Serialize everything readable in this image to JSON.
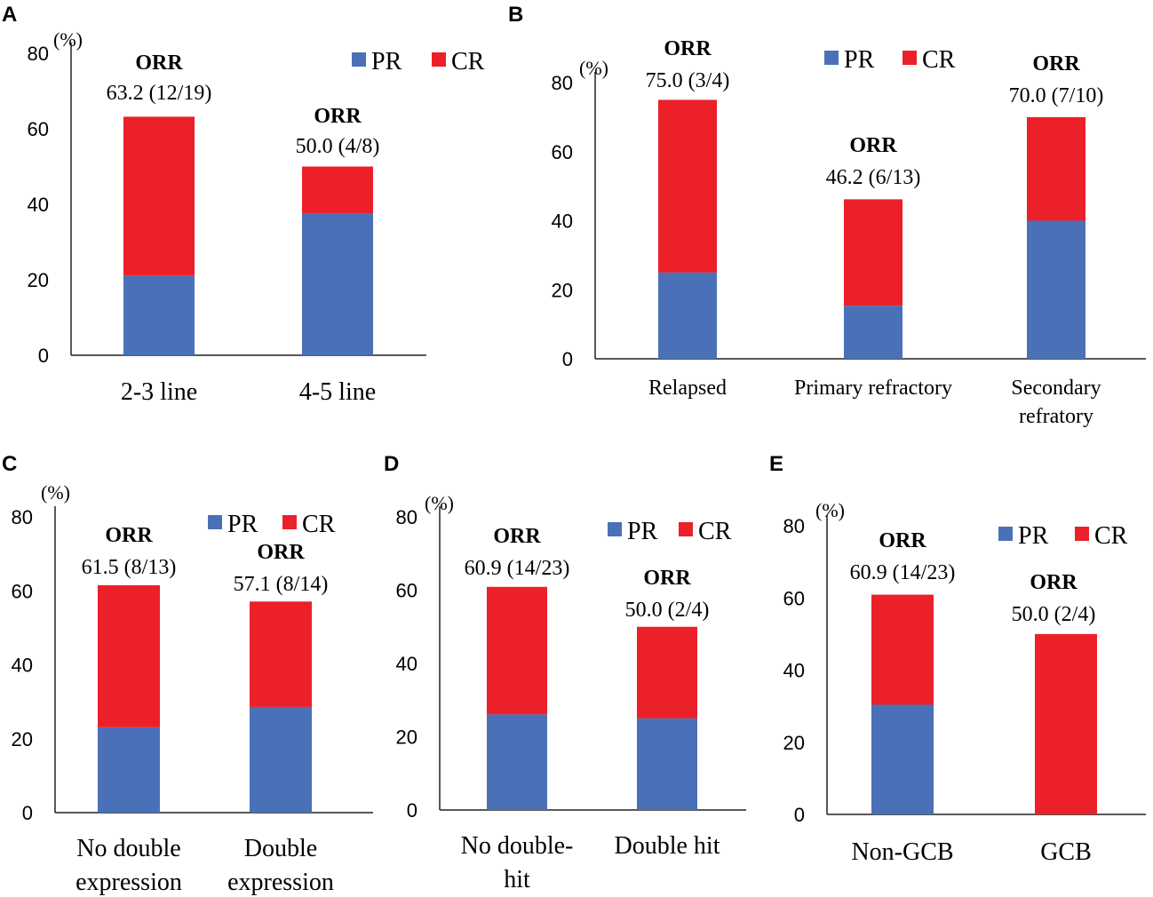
{
  "legend": {
    "pr": "PR",
    "cr": "CR"
  },
  "colors": {
    "pr": "#4a70b8",
    "cr": "#ec2028"
  },
  "chart_data": [
    {
      "panel": "A",
      "type": "bar",
      "stacked": true,
      "ylim": [
        0,
        80
      ],
      "yticks": [
        0,
        20,
        40,
        60,
        80
      ],
      "ylabel": "(%)",
      "categories": [
        [
          "2-3 line"
        ],
        [
          "4-5 line"
        ]
      ],
      "series": [
        {
          "name": "PR",
          "values": [
            21.1,
            37.5
          ]
        },
        {
          "name": "CR",
          "values": [
            42.1,
            12.5
          ]
        }
      ],
      "annotations": [
        {
          "title": "ORR",
          "value": "63.2 (12/19)"
        },
        {
          "title": "ORR",
          "value": "50.0 (4/8)"
        }
      ]
    },
    {
      "panel": "B",
      "type": "bar",
      "stacked": true,
      "ylim": [
        0,
        80
      ],
      "yticks": [
        0,
        20,
        40,
        60,
        80
      ],
      "ylabel": "(%)",
      "categories": [
        [
          "Relapsed"
        ],
        [
          "Primary refractory"
        ],
        [
          "Secondary",
          "refratory"
        ]
      ],
      "series": [
        {
          "name": "PR",
          "values": [
            25.0,
            15.4,
            40.0
          ]
        },
        {
          "name": "CR",
          "values": [
            50.0,
            30.8,
            30.0
          ]
        }
      ],
      "annotations": [
        {
          "title": "ORR",
          "value": "75.0 (3/4)"
        },
        {
          "title": "ORR",
          "value": "46.2 (6/13)"
        },
        {
          "title": "ORR",
          "value": "70.0 (7/10)"
        }
      ]
    },
    {
      "panel": "C",
      "type": "bar",
      "stacked": true,
      "ylim": [
        0,
        80
      ],
      "yticks": [
        0,
        20,
        40,
        60,
        80
      ],
      "ylabel": "(%)",
      "categories": [
        [
          "No double",
          "expression"
        ],
        [
          "Double",
          "expression"
        ]
      ],
      "series": [
        {
          "name": "PR",
          "values": [
            23.1,
            28.6
          ]
        },
        {
          "name": "CR",
          "values": [
            38.4,
            28.5
          ]
        }
      ],
      "annotations": [
        {
          "title": "ORR",
          "value": "61.5 (8/13)"
        },
        {
          "title": "ORR",
          "value": "57.1 (8/14)"
        }
      ]
    },
    {
      "panel": "D",
      "type": "bar",
      "stacked": true,
      "ylim": [
        0,
        80
      ],
      "yticks": [
        0,
        20,
        40,
        60,
        80
      ],
      "ylabel": "(%)",
      "categories": [
        [
          "No double-",
          "hit"
        ],
        [
          "Double hit"
        ]
      ],
      "series": [
        {
          "name": "PR",
          "values": [
            26.1,
            25.0
          ]
        },
        {
          "name": "CR",
          "values": [
            34.8,
            25.0
          ]
        }
      ],
      "annotations": [
        {
          "title": "ORR",
          "value": "60.9 (14/23)"
        },
        {
          "title": "ORR",
          "value": "50.0 (2/4)"
        }
      ]
    },
    {
      "panel": "E",
      "type": "bar",
      "stacked": true,
      "ylim": [
        0,
        80
      ],
      "yticks": [
        0,
        20,
        40,
        60,
        80
      ],
      "ylabel": "(%)",
      "categories": [
        [
          "Non-GCB"
        ],
        [
          "GCB"
        ]
      ],
      "series": [
        {
          "name": "PR",
          "values": [
            30.4,
            0
          ]
        },
        {
          "name": "CR",
          "values": [
            30.5,
            50.0
          ]
        }
      ],
      "annotations": [
        {
          "title": "ORR",
          "value": "60.9 (14/23)"
        },
        {
          "title": "ORR",
          "value": "50.0 (2/4)"
        }
      ]
    }
  ]
}
